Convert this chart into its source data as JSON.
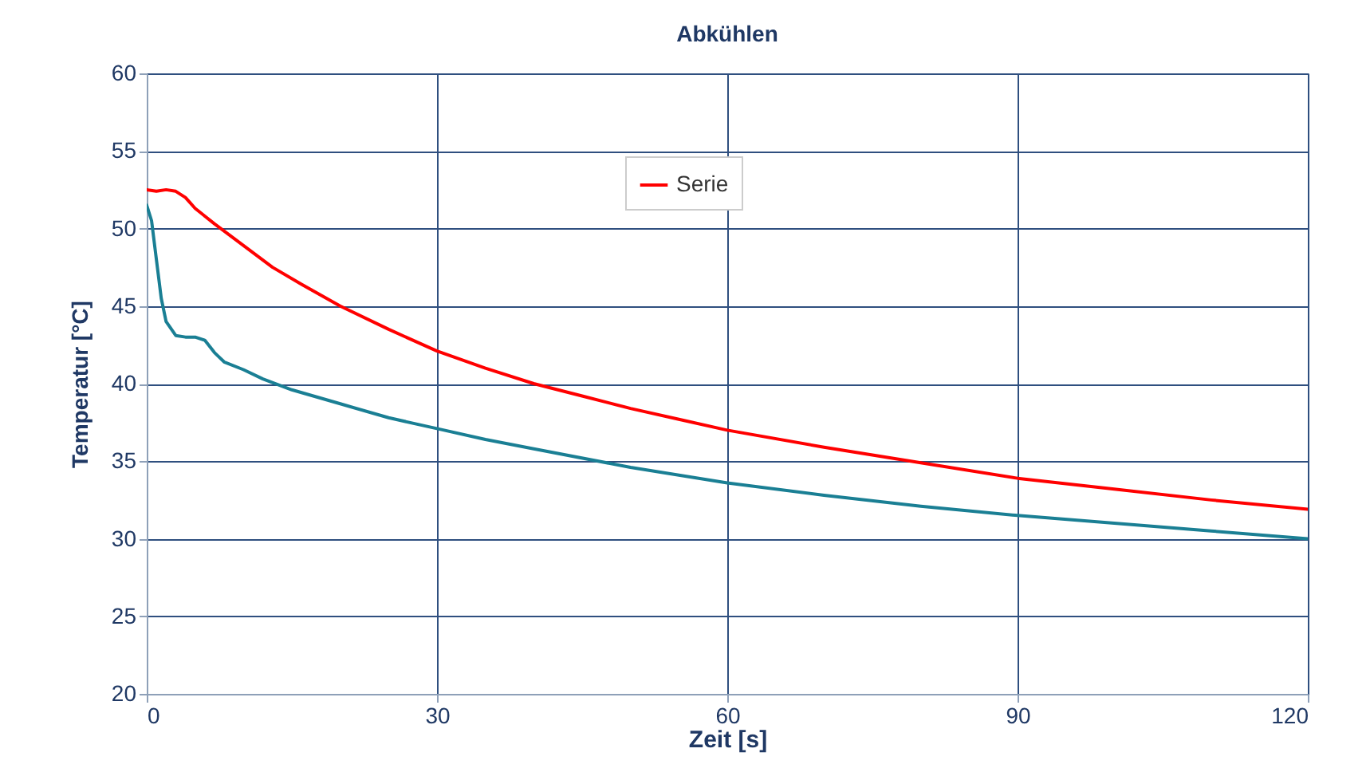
{
  "chart_data": {
    "type": "line",
    "title": "Abkühlen",
    "xlabel": "Zeit [s]",
    "ylabel": "Temperatur [°C]",
    "xlim": [
      0,
      120
    ],
    "xticks": [
      0,
      30,
      60,
      90,
      120
    ],
    "ylim": [
      20,
      60
    ],
    "yticks": [
      20,
      25,
      30,
      35,
      40,
      45,
      50,
      55,
      60
    ],
    "grid": true,
    "legend": "top",
    "line_style": "solid",
    "marker": "none",
    "series": [
      {
        "name": "Serie",
        "color": "#ff0000",
        "x": [
          0,
          1,
          2,
          3,
          4,
          5,
          7,
          10,
          13,
          16,
          20,
          25,
          30,
          35,
          40,
          45,
          50,
          55,
          60,
          70,
          80,
          90,
          100,
          110,
          120
        ],
        "values": [
          52.5,
          52.4,
          52.5,
          52.4,
          52.0,
          51.3,
          50.3,
          48.9,
          47.5,
          46.4,
          45.0,
          43.5,
          42.1,
          41.0,
          40.0,
          39.2,
          38.4,
          37.7,
          37.0,
          35.9,
          34.9,
          33.9,
          33.2,
          32.5,
          31.9
        ]
      },
      {
        "color": "#1a7f94",
        "x": [
          0,
          0.5,
          1,
          1.5,
          2,
          3,
          4,
          5,
          6,
          7,
          8,
          10,
          12,
          15,
          20,
          25,
          30,
          35,
          40,
          50,
          60,
          70,
          80,
          90,
          100,
          110,
          120
        ],
        "values": [
          51.5,
          50.5,
          48,
          45.5,
          44,
          43.1,
          43.0,
          43.0,
          42.8,
          42.0,
          41.4,
          40.9,
          40.3,
          39.6,
          38.7,
          37.8,
          37.1,
          36.4,
          35.8,
          34.6,
          33.6,
          32.8,
          32.1,
          31.5,
          31.0,
          30.5,
          30.0
        ]
      }
    ]
  }
}
